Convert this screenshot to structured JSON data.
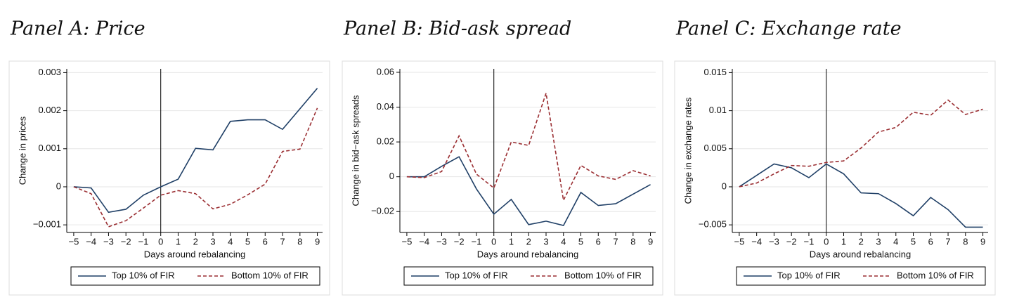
{
  "chart_data": [
    {
      "type": "line",
      "title": "Panel A: Price",
      "xlabel": "Days around rebalancing",
      "ylabel": "Change in prices",
      "x": [
        -5,
        -4,
        -3,
        -2,
        -1,
        0,
        1,
        2,
        3,
        4,
        5,
        6,
        7,
        8,
        9
      ],
      "series": [
        {
          "name": "Top 10% of FIR",
          "color": "#1f3f66",
          "dash": false,
          "values": [
            0,
            -3e-05,
            -0.00067,
            -0.00059,
            -0.00022,
            0,
            0.0002,
            0.00101,
            0.00097,
            0.00172,
            0.00176,
            0.00176,
            0.00151,
            0.00205,
            0.00259
          ]
        },
        {
          "name": "Bottom 10% of FIR",
          "color": "#9b2f33",
          "dash": true,
          "values": [
            0,
            -0.00018,
            -0.00105,
            -0.00089,
            -0.00056,
            -0.00022,
            -0.0001,
            -0.00018,
            -0.00058,
            -0.00046,
            -0.00021,
            7e-05,
            0.00093,
            0.00099,
            0.00207
          ]
        }
      ],
      "xlim": [
        -5.4,
        9.3
      ],
      "ylim": [
        -0.0012,
        0.0031
      ],
      "xticks": [
        {
          "value": -5,
          "label": "−5"
        },
        {
          "value": -4,
          "label": "−4"
        },
        {
          "value": -3,
          "label": "−3"
        },
        {
          "value": -2,
          "label": "−2"
        },
        {
          "value": -1,
          "label": "−1"
        },
        0,
        1,
        2,
        3,
        4,
        5,
        6,
        7,
        8,
        9
      ],
      "yticks": [
        {
          "value": -0.001,
          "label": "−0.001"
        },
        0,
        0.001,
        0.002,
        0.003
      ],
      "vline": 0,
      "grid": true
    },
    {
      "type": "line",
      "title": "Panel B: Bid-ask spread",
      "xlabel": "Days around rebalancing",
      "ylabel": "Change in bid−ask spreads",
      "x": [
        -5,
        -4,
        -3,
        -2,
        -1,
        0,
        1,
        2,
        3,
        4,
        5,
        6,
        7,
        8,
        9
      ],
      "series": [
        {
          "name": "Top 10% of FIR",
          "color": "#1f3f66",
          "dash": false,
          "values": [
            0,
            0,
            0.006,
            0.0115,
            -0.007,
            -0.0215,
            -0.013,
            -0.0275,
            -0.0255,
            -0.028,
            -0.009,
            -0.0165,
            -0.0155,
            -0.01,
            -0.0045
          ]
        },
        {
          "name": "Bottom 10% of FIR",
          "color": "#9b2f33",
          "dash": true,
          "values": [
            0,
            -0.0005,
            0.003,
            0.0235,
            0.0015,
            -0.0065,
            0.02,
            0.018,
            0.048,
            -0.0135,
            0.0065,
            0.0005,
            -0.0015,
            0.0035,
            0.0005
          ]
        }
      ],
      "xlim": [
        -5.4,
        9.3
      ],
      "ylim": [
        -0.032,
        0.062
      ],
      "xticks": [
        {
          "value": -5,
          "label": "−5"
        },
        {
          "value": -4,
          "label": "−4"
        },
        {
          "value": -3,
          "label": "−3"
        },
        {
          "value": -2,
          "label": "−2"
        },
        {
          "value": -1,
          "label": "−1"
        },
        0,
        1,
        2,
        3,
        4,
        5,
        6,
        7,
        8,
        9
      ],
      "yticks": [
        {
          "value": -0.02,
          "label": "−0.02"
        },
        0,
        0.02,
        0.04,
        0.06
      ],
      "vline": 0,
      "grid": true
    },
    {
      "type": "line",
      "title": "Panel C: Exchange rate",
      "xlabel": "Days around rebalancing",
      "ylabel": "Change in exchange rates",
      "x": [
        -5,
        -4,
        -3,
        -2,
        -1,
        0,
        1,
        2,
        3,
        4,
        5,
        6,
        7,
        8,
        9
      ],
      "series": [
        {
          "name": "Top 10% of FIR",
          "color": "#1f3f66",
          "dash": false,
          "values": [
            0,
            0.0015,
            0.003,
            0.0025,
            0.0012,
            0.003,
            0.0017,
            -0.0008,
            -0.0009,
            -0.0022,
            -0.0038,
            -0.0014,
            -0.003,
            -0.0053,
            -0.0053
          ]
        },
        {
          "name": "Bottom 10% of FIR",
          "color": "#9b2f33",
          "dash": true,
          "values": [
            0,
            0.0005,
            0.0017,
            0.0028,
            0.0027,
            0.0032,
            0.0034,
            0.0051,
            0.0072,
            0.0078,
            0.0098,
            0.0094,
            0.0114,
            0.0095,
            0.0102
          ]
        }
      ],
      "xlim": [
        -5.4,
        9.3
      ],
      "ylim": [
        -0.006,
        0.0155
      ],
      "xticks": [
        {
          "value": -5,
          "label": "−5"
        },
        {
          "value": -4,
          "label": "−4"
        },
        {
          "value": -3,
          "label": "−3"
        },
        {
          "value": -2,
          "label": "−2"
        },
        {
          "value": -1,
          "label": "−1"
        },
        0,
        1,
        2,
        3,
        4,
        5,
        6,
        7,
        8,
        9
      ],
      "yticks": [
        {
          "value": -0.005,
          "label": "−0.005"
        },
        0,
        0.005,
        0.01,
        0.015
      ],
      "vline": 0,
      "grid": true
    }
  ]
}
